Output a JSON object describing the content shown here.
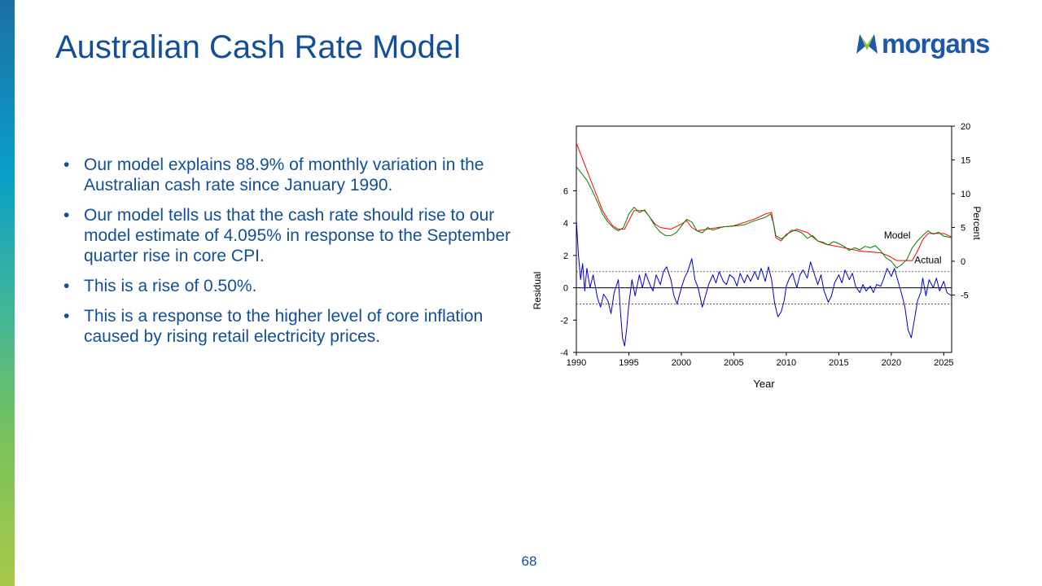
{
  "slide": {
    "title": "Australian Cash Rate Model",
    "page_number": "68",
    "bullets": [
      "Our model explains 88.9% of monthly variation in the Australian cash rate since January 1990.",
      "Our model tells us that the cash rate should rise to our model estimate of 4.095% in response to the September quarter rise in core CPI.",
      "This is a rise of 0.50%.",
      "This is a response to the higher level of core inflation caused by rising retail electricity prices."
    ]
  },
  "logo": {
    "text": "morgans",
    "colors": {
      "text": "#1d59a8",
      "mark_left": "#1d59a8",
      "mark_right": "#8cc63f"
    }
  },
  "colors": {
    "title": "#124f97",
    "model_line": "#ff0000",
    "actual_line": "#008000",
    "residual_line": "#0000c8"
  },
  "chart_data": {
    "type": "line",
    "xlabel": "Year",
    "xlim": [
      1990,
      2025.75
    ],
    "x_ticks": [
      1990,
      1995,
      2000,
      2005,
      2010,
      2015,
      2020,
      2025
    ],
    "right_axis": {
      "label": "Percent",
      "ylim": [
        -13.5,
        20
      ],
      "ticks": [
        20,
        15,
        10,
        5,
        0,
        -5
      ]
    },
    "left_axis": {
      "label": "Residual",
      "ylim": [
        -4,
        10
      ],
      "ticks": [
        6,
        4,
        2,
        0,
        -2,
        -4
      ]
    },
    "residual_bands": [
      1,
      -1
    ],
    "series": [
      {
        "name": "Model",
        "axis": "right",
        "points": [
          [
            1990.0,
            17.5
          ],
          [
            1990.5,
            15.5
          ],
          [
            1991.0,
            13.5
          ],
          [
            1991.5,
            11.5
          ],
          [
            1992.0,
            9.5
          ],
          [
            1992.5,
            7.5
          ],
          [
            1993.0,
            6.2
          ],
          [
            1993.5,
            5.2
          ],
          [
            1994.0,
            4.75
          ],
          [
            1994.6,
            4.75
          ],
          [
            1995.0,
            6.0
          ],
          [
            1995.5,
            7.5
          ],
          [
            1996.5,
            7.5
          ],
          [
            1997.0,
            6.5
          ],
          [
            1997.5,
            5.5
          ],
          [
            1998.0,
            5.0
          ],
          [
            1999.0,
            4.75
          ],
          [
            2000.0,
            5.5
          ],
          [
            2000.5,
            6.0
          ],
          [
            2001.0,
            5.0
          ],
          [
            2001.5,
            4.5
          ],
          [
            2002.5,
            4.75
          ],
          [
            2003.5,
            5.0
          ],
          [
            2005.0,
            5.25
          ],
          [
            2006.0,
            5.75
          ],
          [
            2007.0,
            6.25
          ],
          [
            2008.0,
            7.0
          ],
          [
            2008.6,
            7.25
          ],
          [
            2009.0,
            3.5
          ],
          [
            2009.5,
            3.0
          ],
          [
            2010.0,
            4.0
          ],
          [
            2011.0,
            4.75
          ],
          [
            2012.0,
            4.25
          ],
          [
            2013.0,
            3.0
          ],
          [
            2013.8,
            2.5
          ],
          [
            2015.5,
            2.0
          ],
          [
            2017.0,
            1.5
          ],
          [
            2019.0,
            1.25
          ],
          [
            2019.8,
            0.75
          ],
          [
            2020.5,
            0.1
          ],
          [
            2022.0,
            0.1
          ],
          [
            2022.5,
            1.5
          ],
          [
            2023.0,
            3.2
          ],
          [
            2023.5,
            4.1
          ],
          [
            2025.0,
            4.1
          ],
          [
            2025.75,
            3.6
          ]
        ]
      },
      {
        "name": "Actual",
        "axis": "right",
        "points": [
          [
            1990.0,
            14.0
          ],
          [
            1990.5,
            13.0
          ],
          [
            1991.0,
            12.0
          ],
          [
            1991.5,
            10.5
          ],
          [
            1992.0,
            8.8
          ],
          [
            1992.5,
            7.0
          ],
          [
            1993.0,
            5.8
          ],
          [
            1993.5,
            5.0
          ],
          [
            1994.0,
            4.5
          ],
          [
            1994.5,
            5.0
          ],
          [
            1995.0,
            7.0
          ],
          [
            1995.5,
            8.0
          ],
          [
            1996.0,
            7.2
          ],
          [
            1996.5,
            7.6
          ],
          [
            1997.0,
            6.5
          ],
          [
            1997.5,
            5.2
          ],
          [
            1998.0,
            4.3
          ],
          [
            1998.5,
            3.8
          ],
          [
            1999.0,
            3.8
          ],
          [
            1999.5,
            4.2
          ],
          [
            2000.0,
            5.2
          ],
          [
            2000.5,
            6.2
          ],
          [
            2001.0,
            5.8
          ],
          [
            2001.5,
            4.5
          ],
          [
            2002.0,
            4.2
          ],
          [
            2002.5,
            5.0
          ],
          [
            2003.0,
            4.6
          ],
          [
            2004.0,
            5.1
          ],
          [
            2005.0,
            5.2
          ],
          [
            2006.0,
            5.4
          ],
          [
            2007.0,
            6.0
          ],
          [
            2008.0,
            6.5
          ],
          [
            2008.5,
            7.0
          ],
          [
            2008.8,
            5.5
          ],
          [
            2009.0,
            3.8
          ],
          [
            2009.5,
            3.3
          ],
          [
            2010.0,
            3.8
          ],
          [
            2010.5,
            4.6
          ],
          [
            2011.0,
            4.5
          ],
          [
            2011.5,
            4.2
          ],
          [
            2012.0,
            3.4
          ],
          [
            2012.5,
            3.8
          ],
          [
            2013.0,
            3.0
          ],
          [
            2013.5,
            2.8
          ],
          [
            2014.0,
            2.4
          ],
          [
            2014.5,
            2.9
          ],
          [
            2015.0,
            2.6
          ],
          [
            2015.5,
            2.2
          ],
          [
            2016.0,
            1.6
          ],
          [
            2016.5,
            2.0
          ],
          [
            2017.0,
            1.7
          ],
          [
            2017.5,
            2.2
          ],
          [
            2018.0,
            2.0
          ],
          [
            2018.5,
            2.3
          ],
          [
            2019.0,
            1.5
          ],
          [
            2019.5,
            0.5
          ],
          [
            2020.0,
            0.0
          ],
          [
            2020.5,
            -1.0
          ],
          [
            2021.0,
            -0.5
          ],
          [
            2021.5,
            0.3
          ],
          [
            2022.0,
            2.0
          ],
          [
            2022.5,
            3.0
          ],
          [
            2023.0,
            3.8
          ],
          [
            2023.5,
            4.5
          ],
          [
            2024.0,
            4.0
          ],
          [
            2024.5,
            4.3
          ],
          [
            2025.0,
            3.7
          ],
          [
            2025.75,
            3.5
          ]
        ]
      },
      {
        "name": "Residual",
        "axis": "left",
        "points": [
          [
            1990.0,
            4.2
          ],
          [
            1990.2,
            2.0
          ],
          [
            1990.4,
            0.5
          ],
          [
            1990.6,
            1.5
          ],
          [
            1990.8,
            -0.2
          ],
          [
            1991.0,
            1.2
          ],
          [
            1991.3,
            0.0
          ],
          [
            1991.6,
            0.8
          ],
          [
            1992.0,
            -0.6
          ],
          [
            1992.3,
            -1.2
          ],
          [
            1992.6,
            -0.4
          ],
          [
            1993.0,
            -0.8
          ],
          [
            1993.3,
            -1.6
          ],
          [
            1993.6,
            -0.3
          ],
          [
            1994.0,
            0.5
          ],
          [
            1994.2,
            -1.5
          ],
          [
            1994.4,
            -3.1
          ],
          [
            1994.6,
            -3.6
          ],
          [
            1994.8,
            -2.5
          ],
          [
            1995.0,
            -1.0
          ],
          [
            1995.3,
            0.5
          ],
          [
            1995.6,
            -0.5
          ],
          [
            1996.0,
            0.8
          ],
          [
            1996.3,
            0.0
          ],
          [
            1996.6,
            0.9
          ],
          [
            1997.0,
            0.2
          ],
          [
            1997.3,
            -0.2
          ],
          [
            1997.6,
            0.8
          ],
          [
            1998.0,
            0.2
          ],
          [
            1998.3,
            1.0
          ],
          [
            1998.6,
            1.3
          ],
          [
            1999.0,
            0.5
          ],
          [
            1999.3,
            -0.5
          ],
          [
            1999.6,
            -1.0
          ],
          [
            2000.0,
            0.0
          ],
          [
            2000.3,
            0.6
          ],
          [
            2000.6,
            1.0
          ],
          [
            2001.0,
            1.8
          ],
          [
            2001.3,
            0.5
          ],
          [
            2001.6,
            0.0
          ],
          [
            2002.0,
            -1.2
          ],
          [
            2002.3,
            -0.5
          ],
          [
            2002.6,
            0.2
          ],
          [
            2003.0,
            0.8
          ],
          [
            2003.3,
            0.3
          ],
          [
            2003.6,
            1.0
          ],
          [
            2004.0,
            0.4
          ],
          [
            2004.3,
            0.2
          ],
          [
            2004.6,
            0.8
          ],
          [
            2005.0,
            0.6
          ],
          [
            2005.3,
            0.1
          ],
          [
            2005.6,
            0.9
          ],
          [
            2006.0,
            0.3
          ],
          [
            2006.3,
            0.8
          ],
          [
            2006.6,
            0.4
          ],
          [
            2007.0,
            1.0
          ],
          [
            2007.3,
            0.5
          ],
          [
            2007.6,
            1.2
          ],
          [
            2008.0,
            0.4
          ],
          [
            2008.3,
            1.3
          ],
          [
            2008.6,
            0.5
          ],
          [
            2008.9,
            -1.0
          ],
          [
            2009.2,
            -1.8
          ],
          [
            2009.5,
            -1.5
          ],
          [
            2009.8,
            -0.8
          ],
          [
            2010.0,
            0.1
          ],
          [
            2010.3,
            0.6
          ],
          [
            2010.6,
            0.9
          ],
          [
            2011.0,
            0.0
          ],
          [
            2011.3,
            0.8
          ],
          [
            2011.6,
            1.1
          ],
          [
            2012.0,
            0.6
          ],
          [
            2012.3,
            1.6
          ],
          [
            2012.6,
            1.0
          ],
          [
            2013.0,
            0.2
          ],
          [
            2013.3,
            0.8
          ],
          [
            2013.6,
            -0.2
          ],
          [
            2014.0,
            -0.9
          ],
          [
            2014.3,
            -0.5
          ],
          [
            2014.6,
            0.3
          ],
          [
            2015.0,
            0.8
          ],
          [
            2015.3,
            0.3
          ],
          [
            2015.6,
            1.1
          ],
          [
            2016.0,
            0.5
          ],
          [
            2016.3,
            0.9
          ],
          [
            2016.6,
            0.1
          ],
          [
            2017.0,
            -0.3
          ],
          [
            2017.3,
            0.2
          ],
          [
            2017.6,
            -0.2
          ],
          [
            2018.0,
            0.1
          ],
          [
            2018.3,
            -0.3
          ],
          [
            2018.6,
            0.2
          ],
          [
            2019.0,
            0.1
          ],
          [
            2019.3,
            0.6
          ],
          [
            2019.6,
            1.2
          ],
          [
            2020.0,
            0.7
          ],
          [
            2020.3,
            1.2
          ],
          [
            2020.6,
            0.5
          ],
          [
            2021.0,
            -0.4
          ],
          [
            2021.3,
            -1.2
          ],
          [
            2021.6,
            -2.6
          ],
          [
            2021.9,
            -3.1
          ],
          [
            2022.2,
            -2.0
          ],
          [
            2022.5,
            -0.8
          ],
          [
            2022.8,
            -0.3
          ],
          [
            2023.0,
            0.6
          ],
          [
            2023.3,
            -0.5
          ],
          [
            2023.6,
            0.5
          ],
          [
            2024.0,
            0.0
          ],
          [
            2024.3,
            0.6
          ],
          [
            2024.6,
            -0.2
          ],
          [
            2025.0,
            0.4
          ],
          [
            2025.3,
            -0.3
          ],
          [
            2025.75,
            -0.5
          ]
        ]
      }
    ],
    "annotations": [
      {
        "text": "Model",
        "x": 2019.3,
        "y": 3.4,
        "axis": "right",
        "anchor": "start"
      },
      {
        "text": "Actual",
        "x": 2022.2,
        "y": -0.3,
        "axis": "right",
        "anchor": "start"
      }
    ]
  }
}
